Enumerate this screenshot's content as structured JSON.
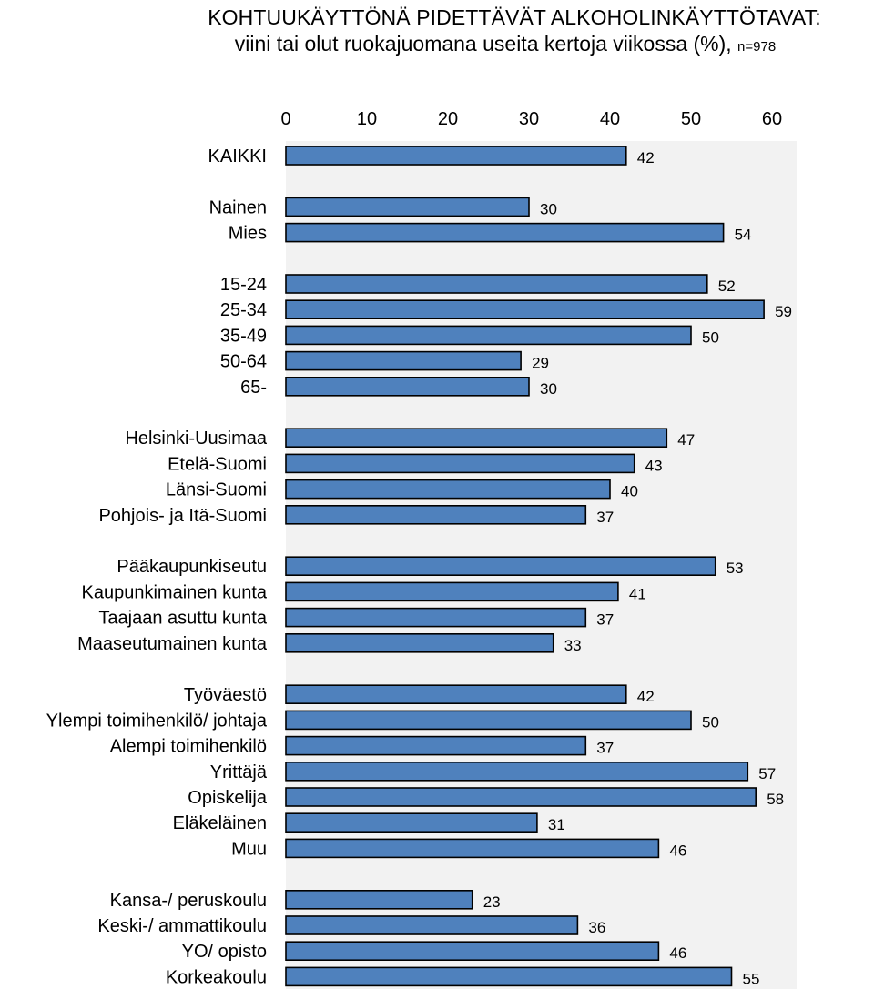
{
  "title": {
    "line1": "KOHTUUKÄYTTÖNÄ PIDETTÄVÄT ALKOHOLINKÄYTTÖTAVAT:",
    "line2": "viini tai olut ruokajuomana useita kertoja viikossa (%),",
    "n_label": "n=978"
  },
  "colors": {
    "bar_fill": "#4f81bd",
    "bar_stroke": "#000000",
    "plot_background": "#f2f2f2"
  },
  "chart_data": {
    "type": "bar",
    "orientation": "horizontal",
    "xlim": [
      0,
      60
    ],
    "xticks": [
      "0",
      "10",
      "20",
      "30",
      "40",
      "50",
      "60"
    ],
    "tick_position": "top",
    "grid": false,
    "legend": "none",
    "groups": [
      {
        "categories": [
          "KAIKKI"
        ],
        "values": [
          42
        ]
      },
      {
        "categories": [
          "Nainen",
          "Mies"
        ],
        "values": [
          30,
          54
        ]
      },
      {
        "categories": [
          "15-24",
          "25-34",
          "35-49",
          "50-64",
          "65-"
        ],
        "values": [
          52,
          59,
          50,
          29,
          30
        ]
      },
      {
        "categories": [
          "Helsinki-Uusimaa",
          "Etelä-Suomi",
          "Länsi-Suomi",
          "Pohjois- ja Itä-Suomi"
        ],
        "values": [
          47,
          43,
          40,
          37
        ]
      },
      {
        "categories": [
          "Pääkaupunkiseutu",
          "Kaupunkimainen kunta",
          "Taajaan asuttu kunta",
          "Maaseutumainen kunta"
        ],
        "values": [
          53,
          41,
          37,
          33
        ]
      },
      {
        "categories": [
          "Työväestö",
          "Ylempi toimihenkilö/ johtaja",
          "Alempi toimihenkilö",
          "Yrittäjä",
          "Opiskelija",
          "Eläkeläinen",
          "Muu"
        ],
        "values": [
          42,
          50,
          37,
          57,
          58,
          31,
          46
        ]
      },
      {
        "categories": [
          "Kansa-/ peruskoulu",
          "Keski-/ ammattikoulu",
          "YO/ opisto",
          "Korkeakoulu"
        ],
        "values": [
          23,
          36,
          46,
          55
        ]
      }
    ]
  }
}
